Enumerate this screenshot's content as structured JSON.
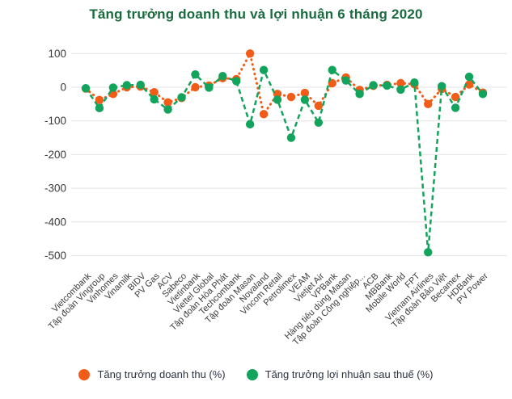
{
  "title": "Tăng trưởng doanh thu và lợi nhuận 6 tháng 2020",
  "colors": {
    "title": "#1A6B3F",
    "revenue": "#F25C19",
    "profit": "#12A35C",
    "axis_text": "#3a3a3a",
    "x_label_text": "#3c3c3c",
    "gridline": "#e4e4e4",
    "legend_text": "#2A3240",
    "background": "#ffffff"
  },
  "chart_data": {
    "type": "line",
    "title": "Tăng trưởng doanh thu và lợi nhuận 6 tháng 2020",
    "xlabel": "",
    "ylabel": "",
    "ylim": [
      -500,
      100
    ],
    "yticks": [
      100,
      0,
      -100,
      -200,
      -300,
      -400,
      -500
    ],
    "grid": true,
    "legend_position": "bottom",
    "categories": [
      "Vietcombank",
      "Tập đoàn Vingroup",
      "Vinhomes",
      "Vinamilk",
      "BIDV",
      "PV Gas",
      "ACV",
      "Sabeco",
      "Vietinbank",
      "Viettel Global",
      "Tập đoàn Hòa Phát",
      "Techcombank",
      "Tập đoàn Masan",
      "Novaland",
      "Vincom Retail",
      "Petrolimex",
      "VEAM",
      "Vietjet Air",
      "VPBank",
      "Hàng tiêu dùng Masan",
      "Tập đoàn Công nghiệp...",
      "ACB",
      "MBBank",
      "Mobile World",
      "FPT",
      "Vietnam Airlines",
      "Tập đoàn Bảo Việt",
      "Becamex",
      "HDBank",
      "PV Power"
    ],
    "series": [
      {
        "name": "Tăng trưởng doanh thu (%)",
        "color": "#F25C19",
        "line_style": "dotted",
        "values": [
          -4,
          -38,
          -20,
          0,
          2,
          -15,
          -45,
          -32,
          0,
          5,
          27,
          24,
          100,
          -80,
          -20,
          -29,
          -17,
          -55,
          12,
          29,
          -8,
          4,
          7,
          12,
          9,
          -50,
          -5,
          -29,
          8,
          -16
        ]
      },
      {
        "name": "Tăng trưởng lợi nhuận sau thuế (%)",
        "color": "#12A35C",
        "line_style": "dashed",
        "values": [
          -3,
          -62,
          -1,
          6,
          7,
          -36,
          -66,
          -30,
          38,
          -1,
          33,
          18,
          -110,
          51,
          -37,
          -150,
          -37,
          -105,
          51,
          20,
          -20,
          6,
          5,
          -7,
          14,
          -490,
          3,
          -61,
          31,
          -20
        ]
      }
    ]
  },
  "legend": {
    "items": [
      {
        "label": "Tăng trưởng doanh thu (%)",
        "color": "#F25C19"
      },
      {
        "label": "Tăng trưởng lợi nhuận sau thuế (%)",
        "color": "#12A35C"
      }
    ]
  }
}
